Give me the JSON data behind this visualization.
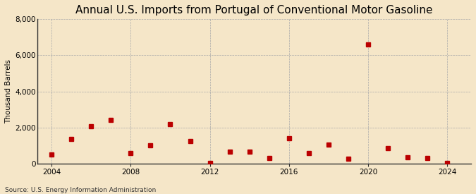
{
  "title": "Annual U.S. Imports from Portugal of Conventional Motor Gasoline",
  "ylabel": "Thousand Barrels",
  "source": "Source: U.S. Energy Information Administration",
  "background_color": "#f5e6c8",
  "years": [
    2004,
    2005,
    2006,
    2007,
    2008,
    2009,
    2010,
    2011,
    2012,
    2013,
    2014,
    2015,
    2016,
    2017,
    2018,
    2019,
    2020,
    2021,
    2022,
    2023,
    2024
  ],
  "values": [
    500,
    1350,
    2050,
    2400,
    600,
    1000,
    2200,
    1250,
    30,
    650,
    650,
    300,
    1400,
    600,
    1050,
    250,
    6600,
    850,
    350,
    300,
    30
  ],
  "marker_color": "#bb0000",
  "marker_size": 4,
  "ylim": [
    0,
    8000
  ],
  "yticks": [
    0,
    2000,
    4000,
    6000,
    8000
  ],
  "ytick_labels": [
    "0",
    "2,000",
    "4,000",
    "6,000",
    "8,000"
  ],
  "xlim": [
    2003.3,
    2025.2
  ],
  "xticks": [
    2004,
    2008,
    2012,
    2016,
    2020,
    2024
  ],
  "grid_color": "#aaaaaa",
  "grid_linestyle": "--",
  "title_fontsize": 11,
  "label_fontsize": 7.5,
  "tick_fontsize": 7.5,
  "source_fontsize": 6.5
}
